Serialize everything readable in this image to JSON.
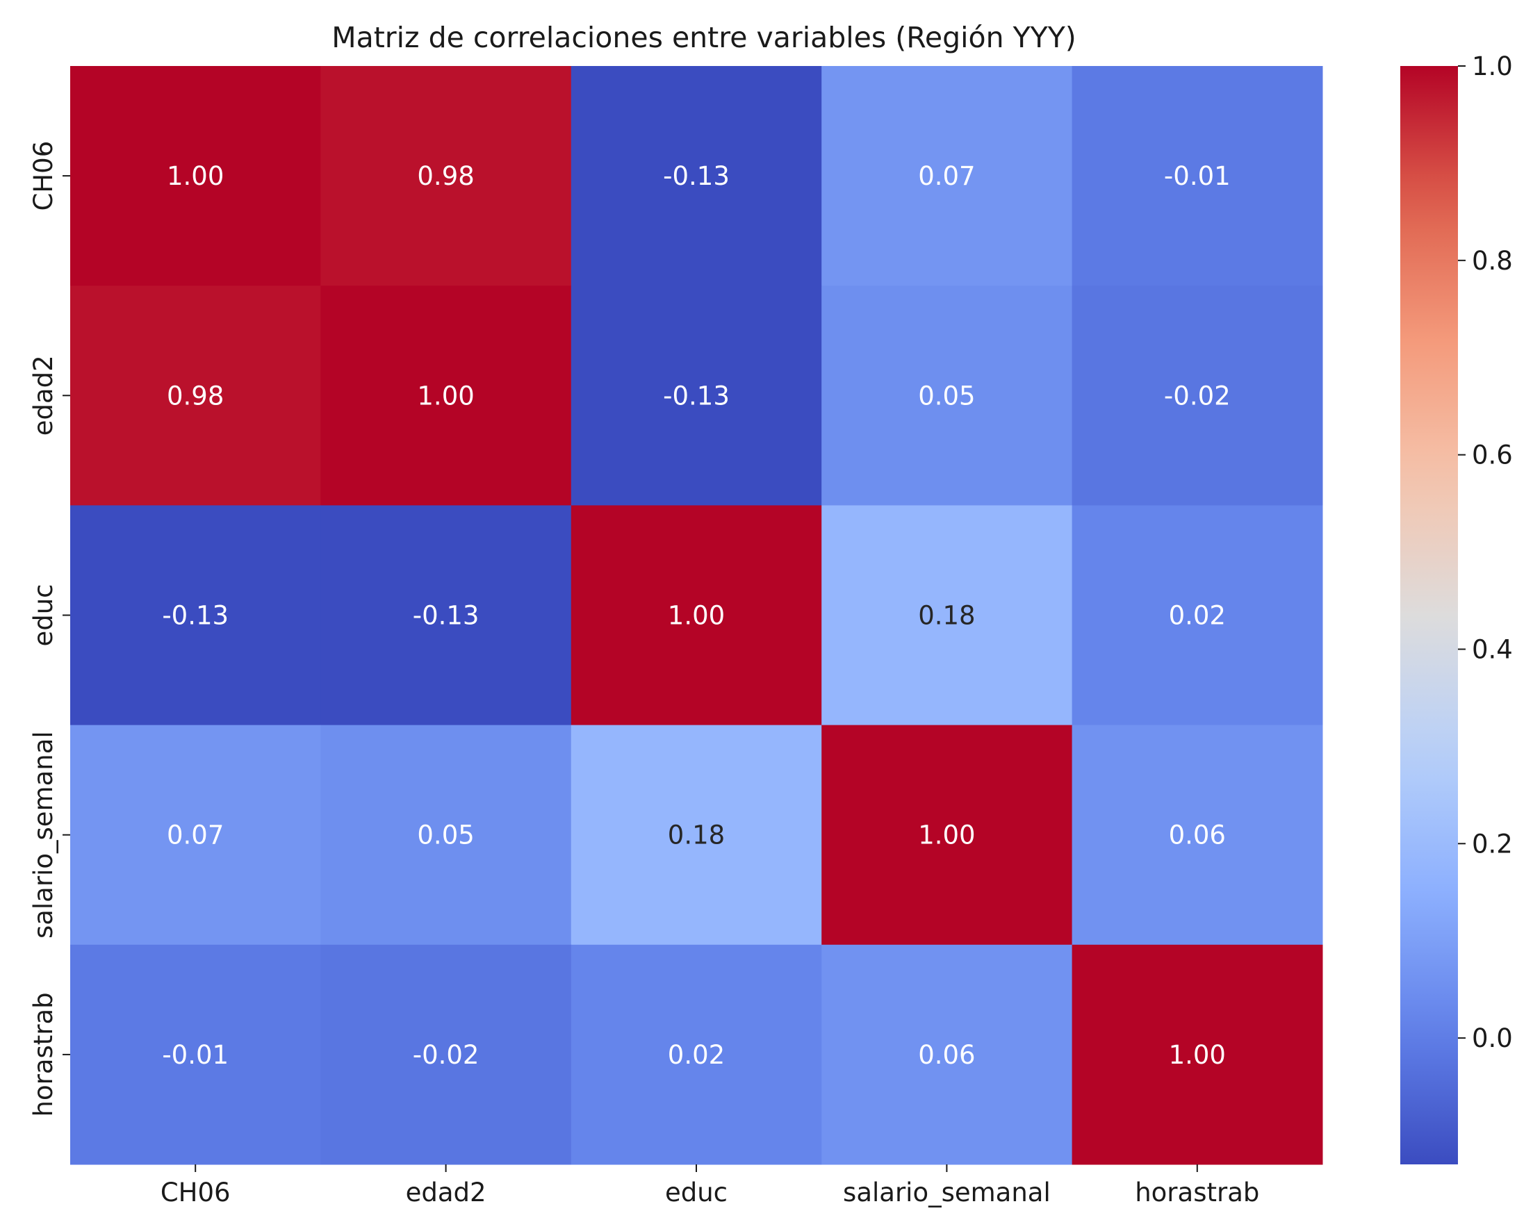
{
  "chart_data": {
    "type": "heatmap",
    "title": "Matriz de correlaciones entre variables (Región YYY)",
    "x_labels": [
      "CH06",
      "edad2",
      "educ",
      "salario_semanal",
      "horastrab"
    ],
    "y_labels": [
      "CH06",
      "edad2",
      "educ",
      "salario_semanal",
      "horastrab"
    ],
    "values": [
      [
        1.0,
        0.98,
        -0.13,
        0.07,
        -0.01
      ],
      [
        0.98,
        1.0,
        -0.13,
        0.05,
        -0.02
      ],
      [
        -0.13,
        -0.13,
        1.0,
        0.18,
        0.02
      ],
      [
        0.07,
        0.05,
        0.18,
        1.0,
        0.06
      ],
      [
        -0.01,
        -0.02,
        0.02,
        0.06,
        1.0
      ]
    ],
    "annotations": [
      [
        "1.00",
        "0.98",
        "-0.13",
        "0.07",
        "-0.01"
      ],
      [
        "0.98",
        "1.00",
        "-0.13",
        "0.05",
        "-0.02"
      ],
      [
        "-0.13",
        "-0.13",
        "1.00",
        "0.18",
        "0.02"
      ],
      [
        "0.07",
        "0.05",
        "0.18",
        "1.00",
        "0.06"
      ],
      [
        "-0.01",
        "-0.02",
        "0.02",
        "0.06",
        "1.00"
      ]
    ],
    "colormap": "coolwarm",
    "vmin": -0.13,
    "vmax": 1.0,
    "colorbar_ticks": [
      "0.0",
      "0.2",
      "0.4",
      "0.6",
      "0.8",
      "1.0"
    ],
    "colorbar_tick_values": [
      0.0,
      0.2,
      0.4,
      0.6,
      0.8,
      1.0
    ]
  }
}
